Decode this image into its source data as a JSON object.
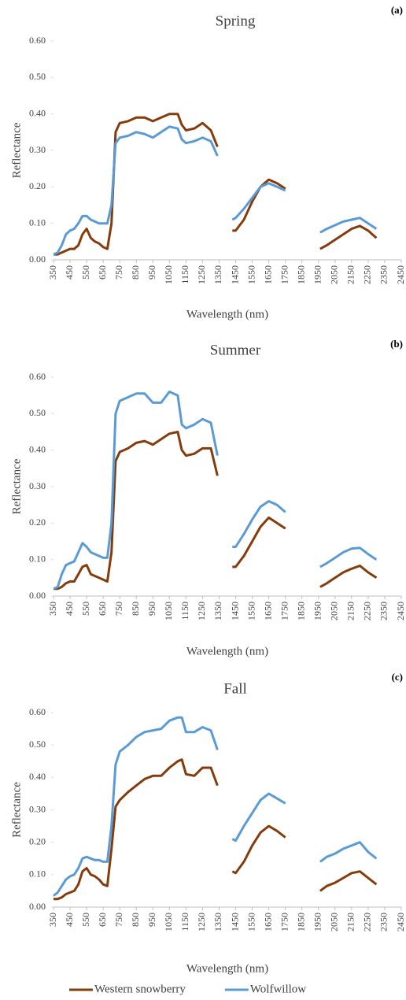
{
  "chart_data": [
    {
      "type": "line",
      "title": "Spring",
      "panel_label": "(a)",
      "y_label": "Reflectance",
      "x_label": "Wavelength (nm)",
      "x": [
        350,
        375,
        400,
        425,
        450,
        475,
        500,
        525,
        550,
        575,
        600,
        625,
        650,
        675,
        700,
        725,
        750,
        800,
        850,
        900,
        950,
        1000,
        1050,
        1100,
        1125,
        1150,
        1200,
        1250,
        1300,
        1340,
        1390,
        1430,
        1450,
        1500,
        1550,
        1600,
        1650,
        1700,
        1750,
        1850,
        1960,
        2000,
        2050,
        2100,
        2150,
        2200,
        2250,
        2300
      ],
      "xlim": [
        350,
        2450
      ],
      "xticks": [
        350,
        450,
        550,
        650,
        750,
        850,
        950,
        1050,
        1150,
        1250,
        1350,
        1450,
        1550,
        1650,
        1750,
        1850,
        1950,
        2050,
        2150,
        2250,
        2350,
        2450
      ],
      "ylim": [
        0,
        0.6
      ],
      "yticks": [
        {
          "value": 0,
          "label": "0.00"
        },
        {
          "value": 0.1,
          "label": "0.10"
        },
        {
          "value": 0.2,
          "label": "0.20"
        },
        {
          "value": 0.3,
          "label": "0.30"
        },
        {
          "value": 0.4,
          "label": "0.40"
        },
        {
          "value": 0.5,
          "label": "0.50"
        },
        {
          "value": 0.6,
          "label": "0.60"
        }
      ],
      "series": [
        {
          "color": "#843c0c",
          "values": [
            0.015,
            0.015,
            0.02,
            0.025,
            0.03,
            0.03,
            0.04,
            0.07,
            0.085,
            0.06,
            0.05,
            0.045,
            0.035,
            0.03,
            0.1,
            0.35,
            0.375,
            0.38,
            0.39,
            0.39,
            0.38,
            0.39,
            0.4,
            0.4,
            0.37,
            0.355,
            0.36,
            0.375,
            0.355,
            0.31,
            null,
            0.08,
            0.08,
            0.11,
            0.16,
            0.2,
            0.22,
            0.21,
            0.195,
            null,
            0.03,
            0.04,
            0.055,
            0.07,
            0.085,
            0.093,
            0.08,
            0.06
          ]
        },
        {
          "color": "#5b9bd5",
          "values": [
            0.015,
            0.02,
            0.04,
            0.07,
            0.08,
            0.085,
            0.1,
            0.12,
            0.12,
            0.11,
            0.105,
            0.1,
            0.1,
            0.1,
            0.15,
            0.32,
            0.335,
            0.34,
            0.35,
            0.345,
            0.335,
            0.35,
            0.365,
            0.36,
            0.33,
            0.32,
            0.325,
            0.335,
            0.325,
            0.285,
            null,
            0.11,
            0.115,
            0.14,
            0.17,
            0.2,
            0.21,
            0.2,
            0.19,
            null,
            0.075,
            0.085,
            0.095,
            0.105,
            0.11,
            0.115,
            0.1,
            0.085
          ]
        }
      ]
    },
    {
      "type": "line",
      "title": "Summer",
      "panel_label": "(b)",
      "y_label": "Reflectance",
      "x_label": "Wavelength (nm)",
      "x": [
        350,
        375,
        400,
        425,
        450,
        475,
        500,
        525,
        550,
        575,
        600,
        625,
        650,
        675,
        700,
        725,
        750,
        800,
        850,
        900,
        950,
        1000,
        1050,
        1100,
        1125,
        1150,
        1200,
        1250,
        1300,
        1340,
        1390,
        1430,
        1450,
        1500,
        1550,
        1600,
        1650,
        1700,
        1750,
        1850,
        1960,
        2000,
        2050,
        2100,
        2150,
        2200,
        2250,
        2300
      ],
      "xlim": [
        350,
        2450
      ],
      "xticks": [
        350,
        450,
        550,
        650,
        750,
        850,
        950,
        1050,
        1150,
        1250,
        1350,
        1450,
        1550,
        1650,
        1750,
        1850,
        1950,
        2050,
        2150,
        2250,
        2350,
        2450
      ],
      "ylim": [
        0,
        0.6
      ],
      "yticks": [
        {
          "value": 0,
          "label": "0.00"
        },
        {
          "value": 0.1,
          "label": "0.10"
        },
        {
          "value": 0.2,
          "label": "0.20"
        },
        {
          "value": 0.3,
          "label": "0.30"
        },
        {
          "value": 0.4,
          "label": "0.40"
        },
        {
          "value": 0.5,
          "label": "0.50"
        },
        {
          "value": 0.6,
          "label": "0.60"
        }
      ],
      "series": [
        {
          "color": "#843c0c",
          "values": [
            0.02,
            0.02,
            0.025,
            0.035,
            0.04,
            0.04,
            0.06,
            0.08,
            0.085,
            0.06,
            0.055,
            0.05,
            0.045,
            0.04,
            0.12,
            0.37,
            0.395,
            0.405,
            0.42,
            0.425,
            0.415,
            0.43,
            0.445,
            0.45,
            0.4,
            0.385,
            0.39,
            0.405,
            0.405,
            0.33,
            null,
            0.08,
            0.08,
            0.11,
            0.15,
            0.19,
            0.215,
            0.2,
            0.185,
            null,
            0.025,
            0.035,
            0.05,
            0.065,
            0.075,
            0.083,
            0.065,
            0.05
          ]
        },
        {
          "color": "#5b9bd5",
          "values": [
            0.02,
            0.025,
            0.06,
            0.085,
            0.09,
            0.095,
            0.12,
            0.145,
            0.135,
            0.12,
            0.115,
            0.11,
            0.105,
            0.105,
            0.2,
            0.5,
            0.535,
            0.545,
            0.555,
            0.555,
            0.53,
            0.53,
            0.56,
            0.55,
            0.47,
            0.46,
            0.47,
            0.485,
            0.475,
            0.385,
            null,
            0.135,
            0.135,
            0.17,
            0.21,
            0.245,
            0.26,
            0.25,
            0.23,
            null,
            0.08,
            0.09,
            0.105,
            0.12,
            0.13,
            0.132,
            0.115,
            0.1
          ]
        }
      ]
    },
    {
      "type": "line",
      "title": "Fall",
      "panel_label": "(c)",
      "y_label": "Reflectance",
      "x_label": "Wavelength (nm)",
      "x": [
        350,
        375,
        400,
        425,
        450,
        475,
        500,
        525,
        550,
        575,
        600,
        625,
        650,
        675,
        700,
        725,
        750,
        800,
        850,
        900,
        950,
        1000,
        1050,
        1100,
        1125,
        1150,
        1200,
        1250,
        1300,
        1340,
        1390,
        1430,
        1450,
        1500,
        1550,
        1600,
        1650,
        1700,
        1750,
        1850,
        1960,
        2000,
        2050,
        2100,
        2150,
        2200,
        2250,
        2300
      ],
      "xlim": [
        350,
        2450
      ],
      "xticks": [
        350,
        450,
        550,
        650,
        750,
        850,
        950,
        1050,
        1150,
        1250,
        1350,
        1450,
        1550,
        1650,
        1750,
        1850,
        1950,
        2050,
        2150,
        2250,
        2350,
        2450
      ],
      "ylim": [
        0,
        0.6
      ],
      "yticks": [
        {
          "value": 0,
          "label": "0.00"
        },
        {
          "value": 0.1,
          "label": "0.10"
        },
        {
          "value": 0.2,
          "label": "0.20"
        },
        {
          "value": 0.3,
          "label": "0.30"
        },
        {
          "value": 0.4,
          "label": "0.40"
        },
        {
          "value": 0.5,
          "label": "0.50"
        },
        {
          "value": 0.6,
          "label": "0.60"
        }
      ],
      "legend": "bottom",
      "series": [
        {
          "name": "Western snowberry",
          "color": "#843c0c",
          "values": [
            0.025,
            0.025,
            0.03,
            0.04,
            0.045,
            0.05,
            0.07,
            0.11,
            0.12,
            0.1,
            0.095,
            0.085,
            0.07,
            0.065,
            0.18,
            0.31,
            0.33,
            0.355,
            0.375,
            0.395,
            0.405,
            0.405,
            0.43,
            0.45,
            0.455,
            0.41,
            0.405,
            0.43,
            0.43,
            0.375,
            null,
            0.11,
            0.105,
            0.14,
            0.19,
            0.23,
            0.25,
            0.235,
            0.215,
            null,
            0.05,
            0.065,
            0.075,
            0.09,
            0.105,
            0.11,
            0.09,
            0.07
          ]
        },
        {
          "name": "Wolfwillow",
          "color": "#5b9bd5",
          "values": [
            0.035,
            0.045,
            0.065,
            0.085,
            0.095,
            0.1,
            0.12,
            0.15,
            0.155,
            0.15,
            0.145,
            0.145,
            0.14,
            0.14,
            0.25,
            0.44,
            0.48,
            0.5,
            0.525,
            0.54,
            0.545,
            0.55,
            0.575,
            0.585,
            0.585,
            0.54,
            0.54,
            0.555,
            0.545,
            0.485,
            null,
            0.21,
            0.205,
            0.25,
            0.29,
            0.33,
            0.35,
            0.335,
            0.32,
            null,
            0.14,
            0.155,
            0.165,
            0.18,
            0.19,
            0.2,
            0.17,
            0.15
          ]
        }
      ]
    }
  ]
}
